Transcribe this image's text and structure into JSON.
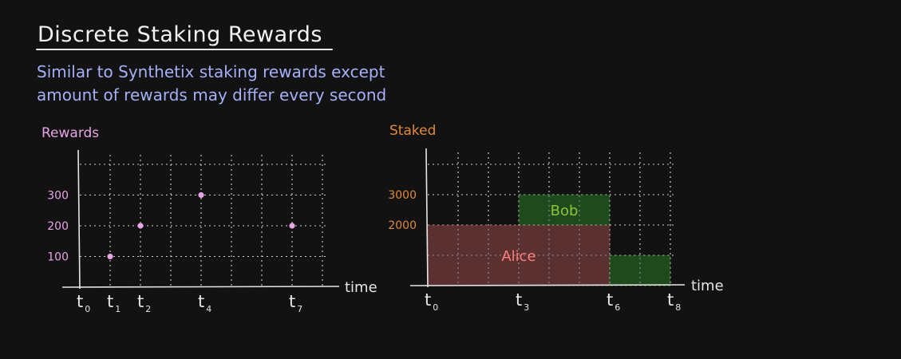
{
  "header": {
    "title": "Discrete Staking Rewards",
    "subtitle_line1": "Similar to Synthetix staking rewards except",
    "subtitle_line2": "amount of rewards may differ every second"
  },
  "colors": {
    "background": "#121212",
    "rewards_accent": "#e8a4e6",
    "staked_accent": "#e08a3c",
    "alice_fill": "#5f3232",
    "alice_text": "#ff7a7a",
    "bob_fill": "#1f4d1f",
    "bob_text": "#8fc23a"
  },
  "chart_data": [
    {
      "type": "scatter",
      "ylabel": "Rewards",
      "xlabel": "time",
      "x_ticks": [
        {
          "base": "t",
          "sub": "0",
          "x": 0
        },
        {
          "base": "t",
          "sub": "1",
          "x": 1
        },
        {
          "base": "t",
          "sub": "2",
          "x": 2
        },
        {
          "base": "t",
          "sub": "4",
          "x": 4
        },
        {
          "base": "t",
          "sub": "7",
          "x": 7
        }
      ],
      "y_ticks": [
        100,
        200,
        300
      ],
      "xlim": [
        0,
        8
      ],
      "ylim": [
        0,
        400
      ],
      "grid": true,
      "points": [
        {
          "x": 1,
          "y": 100
        },
        {
          "x": 2,
          "y": 200
        },
        {
          "x": 4,
          "y": 300
        },
        {
          "x": 7,
          "y": 200
        }
      ]
    },
    {
      "type": "area",
      "ylabel": "Staked",
      "xlabel": "time",
      "x_ticks": [
        {
          "base": "t",
          "sub": "0",
          "x": 0
        },
        {
          "base": "t",
          "sub": "3",
          "x": 3
        },
        {
          "base": "t",
          "sub": "6",
          "x": 6
        },
        {
          "base": "t",
          "sub": "8",
          "x": 8
        }
      ],
      "y_ticks": [
        2000,
        3000
      ],
      "xlim": [
        0,
        8
      ],
      "ylim": [
        0,
        4000
      ],
      "grid": true,
      "series": [
        {
          "name": "Alice",
          "segments": [
            {
              "x0": 0,
              "x1": 6,
              "y0": 0,
              "y1": 2000
            }
          ]
        },
        {
          "name": "Bob",
          "segments": [
            {
              "x0": 3,
              "x1": 6,
              "y0": 2000,
              "y1": 3000
            },
            {
              "x0": 6,
              "x1": 8,
              "y0": 0,
              "y1": 1000
            }
          ]
        }
      ]
    }
  ]
}
